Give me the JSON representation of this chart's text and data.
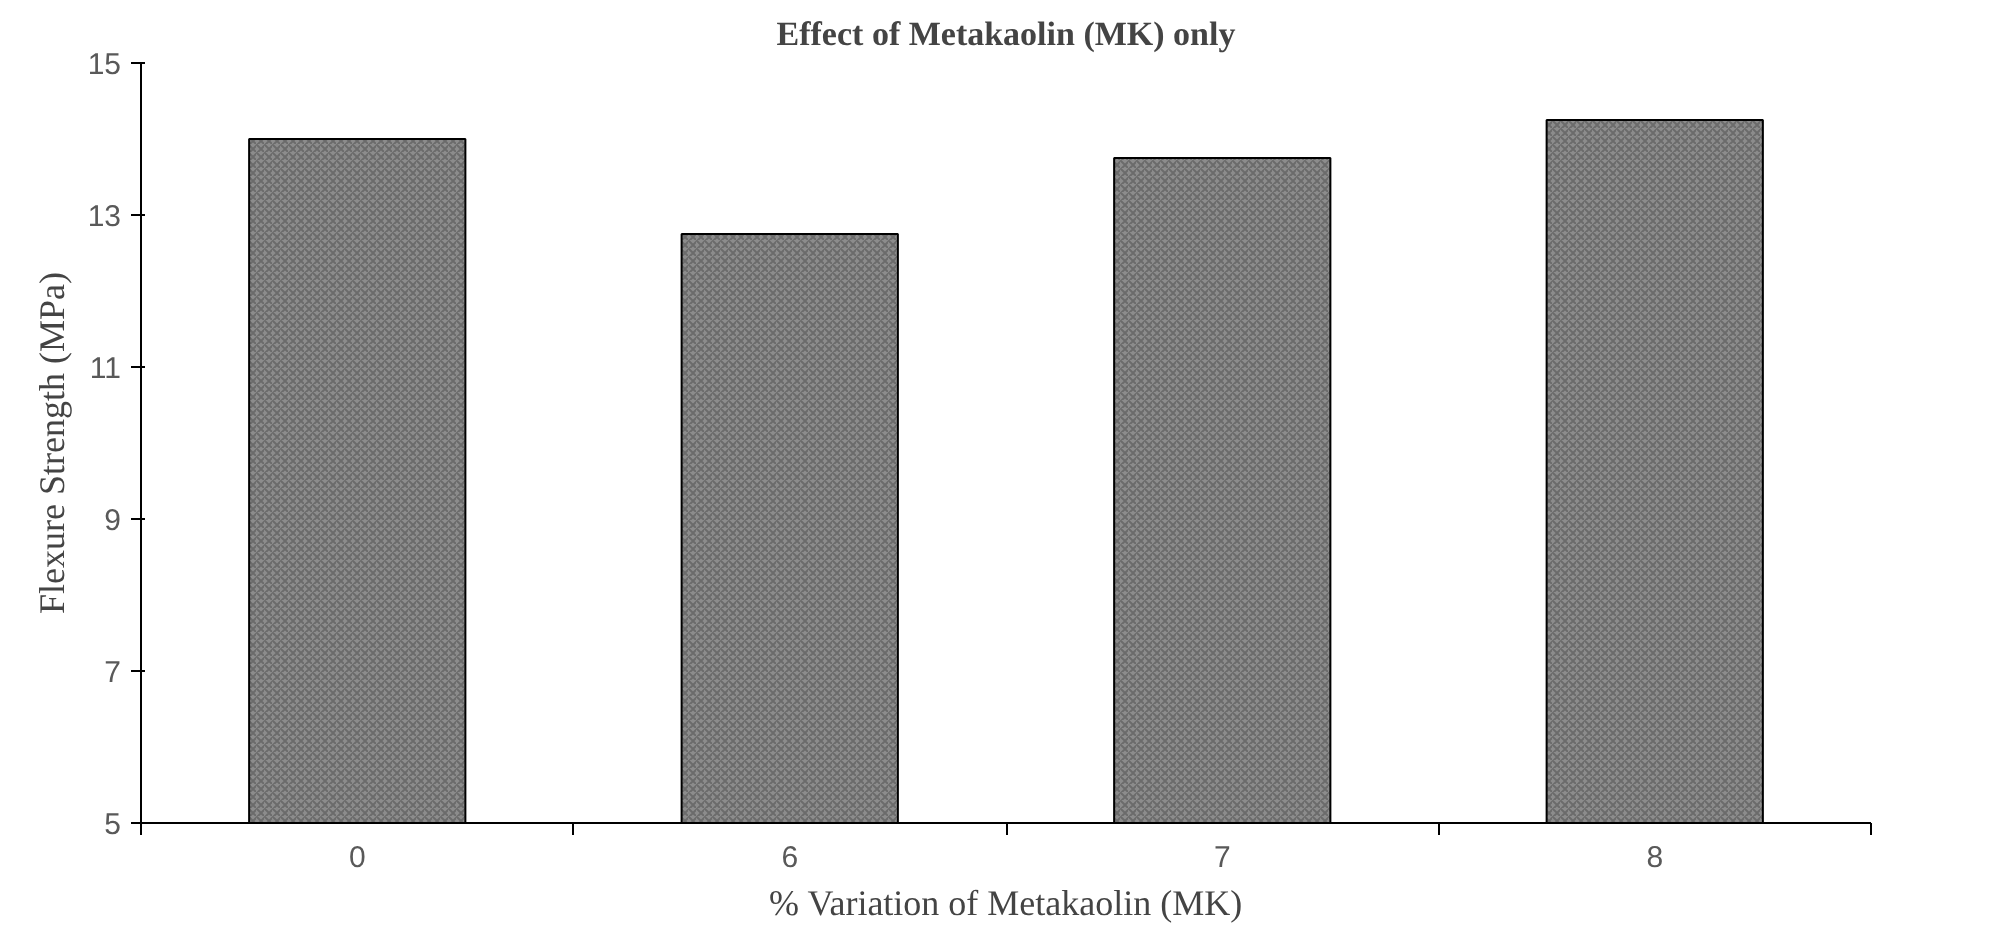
{
  "chart_data": {
    "type": "bar",
    "title": "Effect of Metakaolin (MK) only",
    "xlabel": "% Variation of Metakaolin (MK)",
    "ylabel": "Flexure Strength (MPa)",
    "categories": [
      "0",
      "6",
      "7",
      "8"
    ],
    "values": [
      14.0,
      12.75,
      13.75,
      14.25
    ],
    "color": "#8c8c8c",
    "ylim": [
      5,
      15
    ],
    "yticks": [
      5,
      7,
      9,
      11,
      13,
      15
    ],
    "grid": false
  }
}
